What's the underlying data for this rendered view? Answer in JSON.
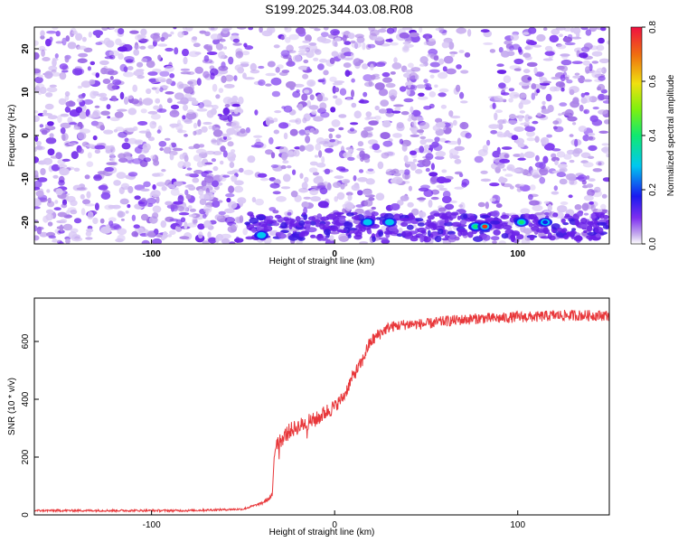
{
  "title": "S199.2025.344.03.08.R08",
  "chart_data": [
    {
      "type": "heatmap",
      "xlabel": "Height of straight line (km)",
      "ylabel": "Frequency (Hz)",
      "xlim": [
        -164,
        150
      ],
      "ylim": [
        -25,
        25
      ],
      "xticks": [
        -100,
        0,
        100
      ],
      "xtick_labels": [
        "-100",
        "0",
        "100"
      ],
      "yticks": [
        -20,
        -10,
        0,
        10,
        20
      ],
      "ytick_labels": [
        "-20",
        "-10",
        "0",
        "10",
        "20"
      ],
      "description_points": [
        {
          "x": -40,
          "y": -23,
          "amp": 0.25
        },
        {
          "x": 18,
          "y": -20,
          "amp": 0.2
        },
        {
          "x": 30,
          "y": -20,
          "amp": 0.25
        },
        {
          "x": 77,
          "y": -21,
          "amp": 0.3
        },
        {
          "x": 82,
          "y": -21,
          "amp": 0.7
        },
        {
          "x": 102,
          "y": -20,
          "amp": 0.3
        },
        {
          "x": 115,
          "y": -20,
          "amp": 0.15
        }
      ],
      "colorbar": {
        "label": "Normalized spectral amplitude",
        "range": [
          0,
          0.8
        ],
        "ticks": [
          0.0,
          0.2,
          0.4,
          0.6,
          0.8
        ],
        "tick_labels": [
          "0.0",
          "0.2",
          "0.4",
          "0.6",
          "0.8"
        ]
      }
    },
    {
      "type": "line",
      "xlabel": "Height of straight line (km)",
      "ylabel": "SNR (10 * v/v)",
      "xlim": [
        -164,
        150
      ],
      "ylim": [
        0,
        750
      ],
      "xticks": [
        -100,
        0,
        100
      ],
      "xtick_labels": [
        "-100",
        "0",
        "100"
      ],
      "yticks": [
        0,
        200,
        400,
        600
      ],
      "ytick_labels": [
        "0",
        "200",
        "400",
        "600"
      ],
      "series": [
        {
          "name": "SNR",
          "color": "#e8373a",
          "x": [
            -164,
            -120,
            -80,
            -50,
            -40,
            -36,
            -34,
            -33,
            -32,
            -30,
            -25,
            -20,
            -15,
            -10,
            -5,
            0,
            5,
            10,
            15,
            18,
            20,
            25,
            30,
            40,
            50,
            60,
            70,
            80,
            90,
            100,
            110,
            120,
            130,
            140,
            150
          ],
          "y": [
            15,
            15,
            15,
            20,
            40,
            55,
            70,
            200,
            250,
            255,
            290,
            305,
            320,
            330,
            355,
            375,
            410,
            480,
            530,
            580,
            600,
            630,
            650,
            660,
            660,
            670,
            675,
            680,
            680,
            685,
            685,
            690,
            690,
            690,
            690
          ]
        }
      ]
    }
  ]
}
